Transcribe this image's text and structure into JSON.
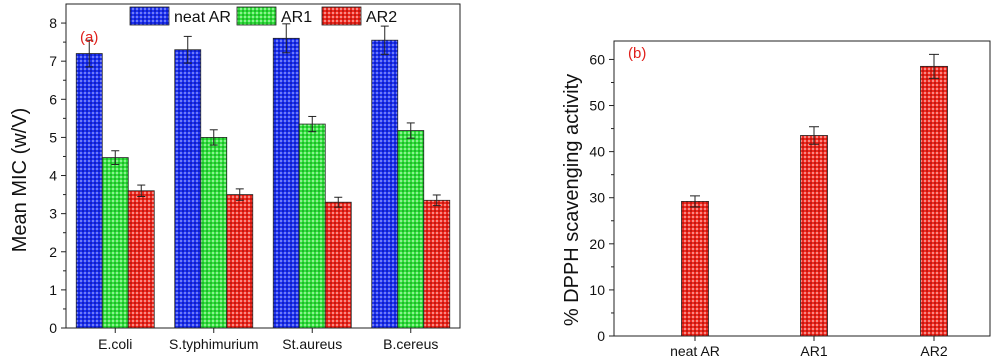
{
  "chart_data": [
    {
      "type": "bar",
      "panel_label": "(a)",
      "categories": [
        "E.coli",
        "S.typhimurium",
        "St.aureus",
        "B.cereus"
      ],
      "series": [
        {
          "name": "neat AR",
          "values": [
            7.2,
            7.3,
            7.6,
            7.55
          ],
          "errors": [
            0.35,
            0.35,
            0.38,
            0.37
          ]
        },
        {
          "name": "AR1",
          "values": [
            4.47,
            5.0,
            5.35,
            5.18
          ],
          "errors": [
            0.18,
            0.2,
            0.2,
            0.2
          ]
        },
        {
          "name": "AR2",
          "values": [
            3.6,
            3.5,
            3.3,
            3.35
          ],
          "errors": [
            0.15,
            0.15,
            0.13,
            0.14
          ]
        }
      ],
      "ylabel": "Mean MIC (w/V)",
      "xlabel": "",
      "ylim": [
        0,
        8.5
      ],
      "yticks": [
        0,
        1,
        2,
        3,
        4,
        5,
        6,
        7,
        8
      ],
      "legend_position": "top",
      "colors": {
        "neat AR": "#1a2be8",
        "AR1": "#2fd93a",
        "AR2": "#e8271d"
      }
    },
    {
      "type": "bar",
      "panel_label": "(b)",
      "categories": [
        "neat AR",
        "AR1",
        "AR2"
      ],
      "values": [
        29.2,
        43.5,
        58.5
      ],
      "errors": [
        1.2,
        1.9,
        2.6
      ],
      "ylabel": "% DPPH scavenging activity",
      "xlabel": "",
      "ylim": [
        0,
        64
      ],
      "yticks": [
        0,
        10,
        20,
        30,
        40,
        50,
        60
      ],
      "colors": {
        "bars": "#e8271d"
      }
    }
  ]
}
